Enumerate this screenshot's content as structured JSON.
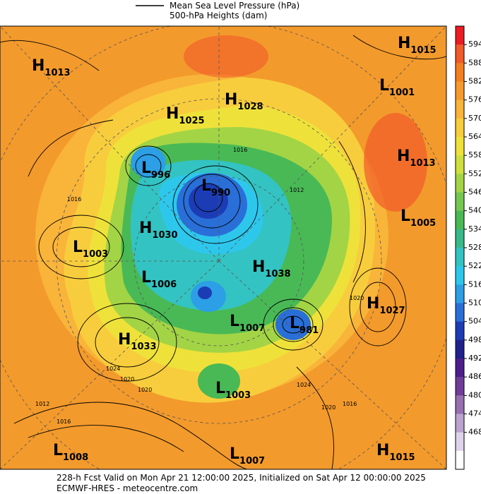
{
  "legend": {
    "line_label_1": "Mean Sea Level Pressure (hPa)",
    "line_label_2": "500-hPa Heights (dam)"
  },
  "colorbar": {
    "ticks": [
      594,
      588,
      582,
      576,
      570,
      564,
      558,
      552,
      546,
      540,
      534,
      528,
      522,
      516,
      510,
      504,
      498,
      492,
      486,
      480,
      474,
      468
    ],
    "colors": [
      "#ec1c24",
      "#f15a29",
      "#f47f20",
      "#f79a2e",
      "#f9b43a",
      "#f8cd3d",
      "#eee23a",
      "#cfe03e",
      "#a3d445",
      "#76c750",
      "#49b955",
      "#39b98a",
      "#33c3c2",
      "#2ec7ec",
      "#2c9fe6",
      "#2a6fd8",
      "#1c3cb5",
      "#20218c",
      "#4a1f8c",
      "#6f3d99",
      "#9670b0",
      "#bba3cf",
      "#ded3ea",
      "#ffffff"
    ]
  },
  "systems": [
    {
      "type": "H",
      "value": "1015"
    },
    {
      "type": "H",
      "value": "1013"
    },
    {
      "type": "L",
      "value": "1001"
    },
    {
      "type": "H",
      "value": "1028"
    },
    {
      "type": "H",
      "value": "1025"
    },
    {
      "type": "H",
      "value": "1013"
    },
    {
      "type": "L",
      "value": "996"
    },
    {
      "type": "L",
      "value": "990"
    },
    {
      "type": "L",
      "value": "1005"
    },
    {
      "type": "H",
      "value": "1030"
    },
    {
      "type": "L",
      "value": "1003"
    },
    {
      "type": "H",
      "value": "1038"
    },
    {
      "type": "L",
      "value": "1006"
    },
    {
      "type": "H",
      "value": "1027"
    },
    {
      "type": "L",
      "value": "1007"
    },
    {
      "type": "L",
      "value": "981"
    },
    {
      "type": "H",
      "value": "1033"
    },
    {
      "type": "L",
      "value": "1003"
    },
    {
      "type": "L",
      "value": "1008"
    },
    {
      "type": "L",
      "value": "1007"
    },
    {
      "type": "H",
      "value": "1015"
    }
  ],
  "contour_labels": [
    "1016",
    "1016",
    "1012",
    "1020",
    "1024",
    "1020",
    "1012",
    "1016",
    "1020",
    "1024",
    "1016",
    "1020"
  ],
  "footer": {
    "line_1": "228-h Fcst Valid on Mon Apr 21 12:00:00 2025, Initialized on Sat Apr 12 00:00:00 2025",
    "line_2": "ECMWF-HRES - meteocentre.com"
  }
}
